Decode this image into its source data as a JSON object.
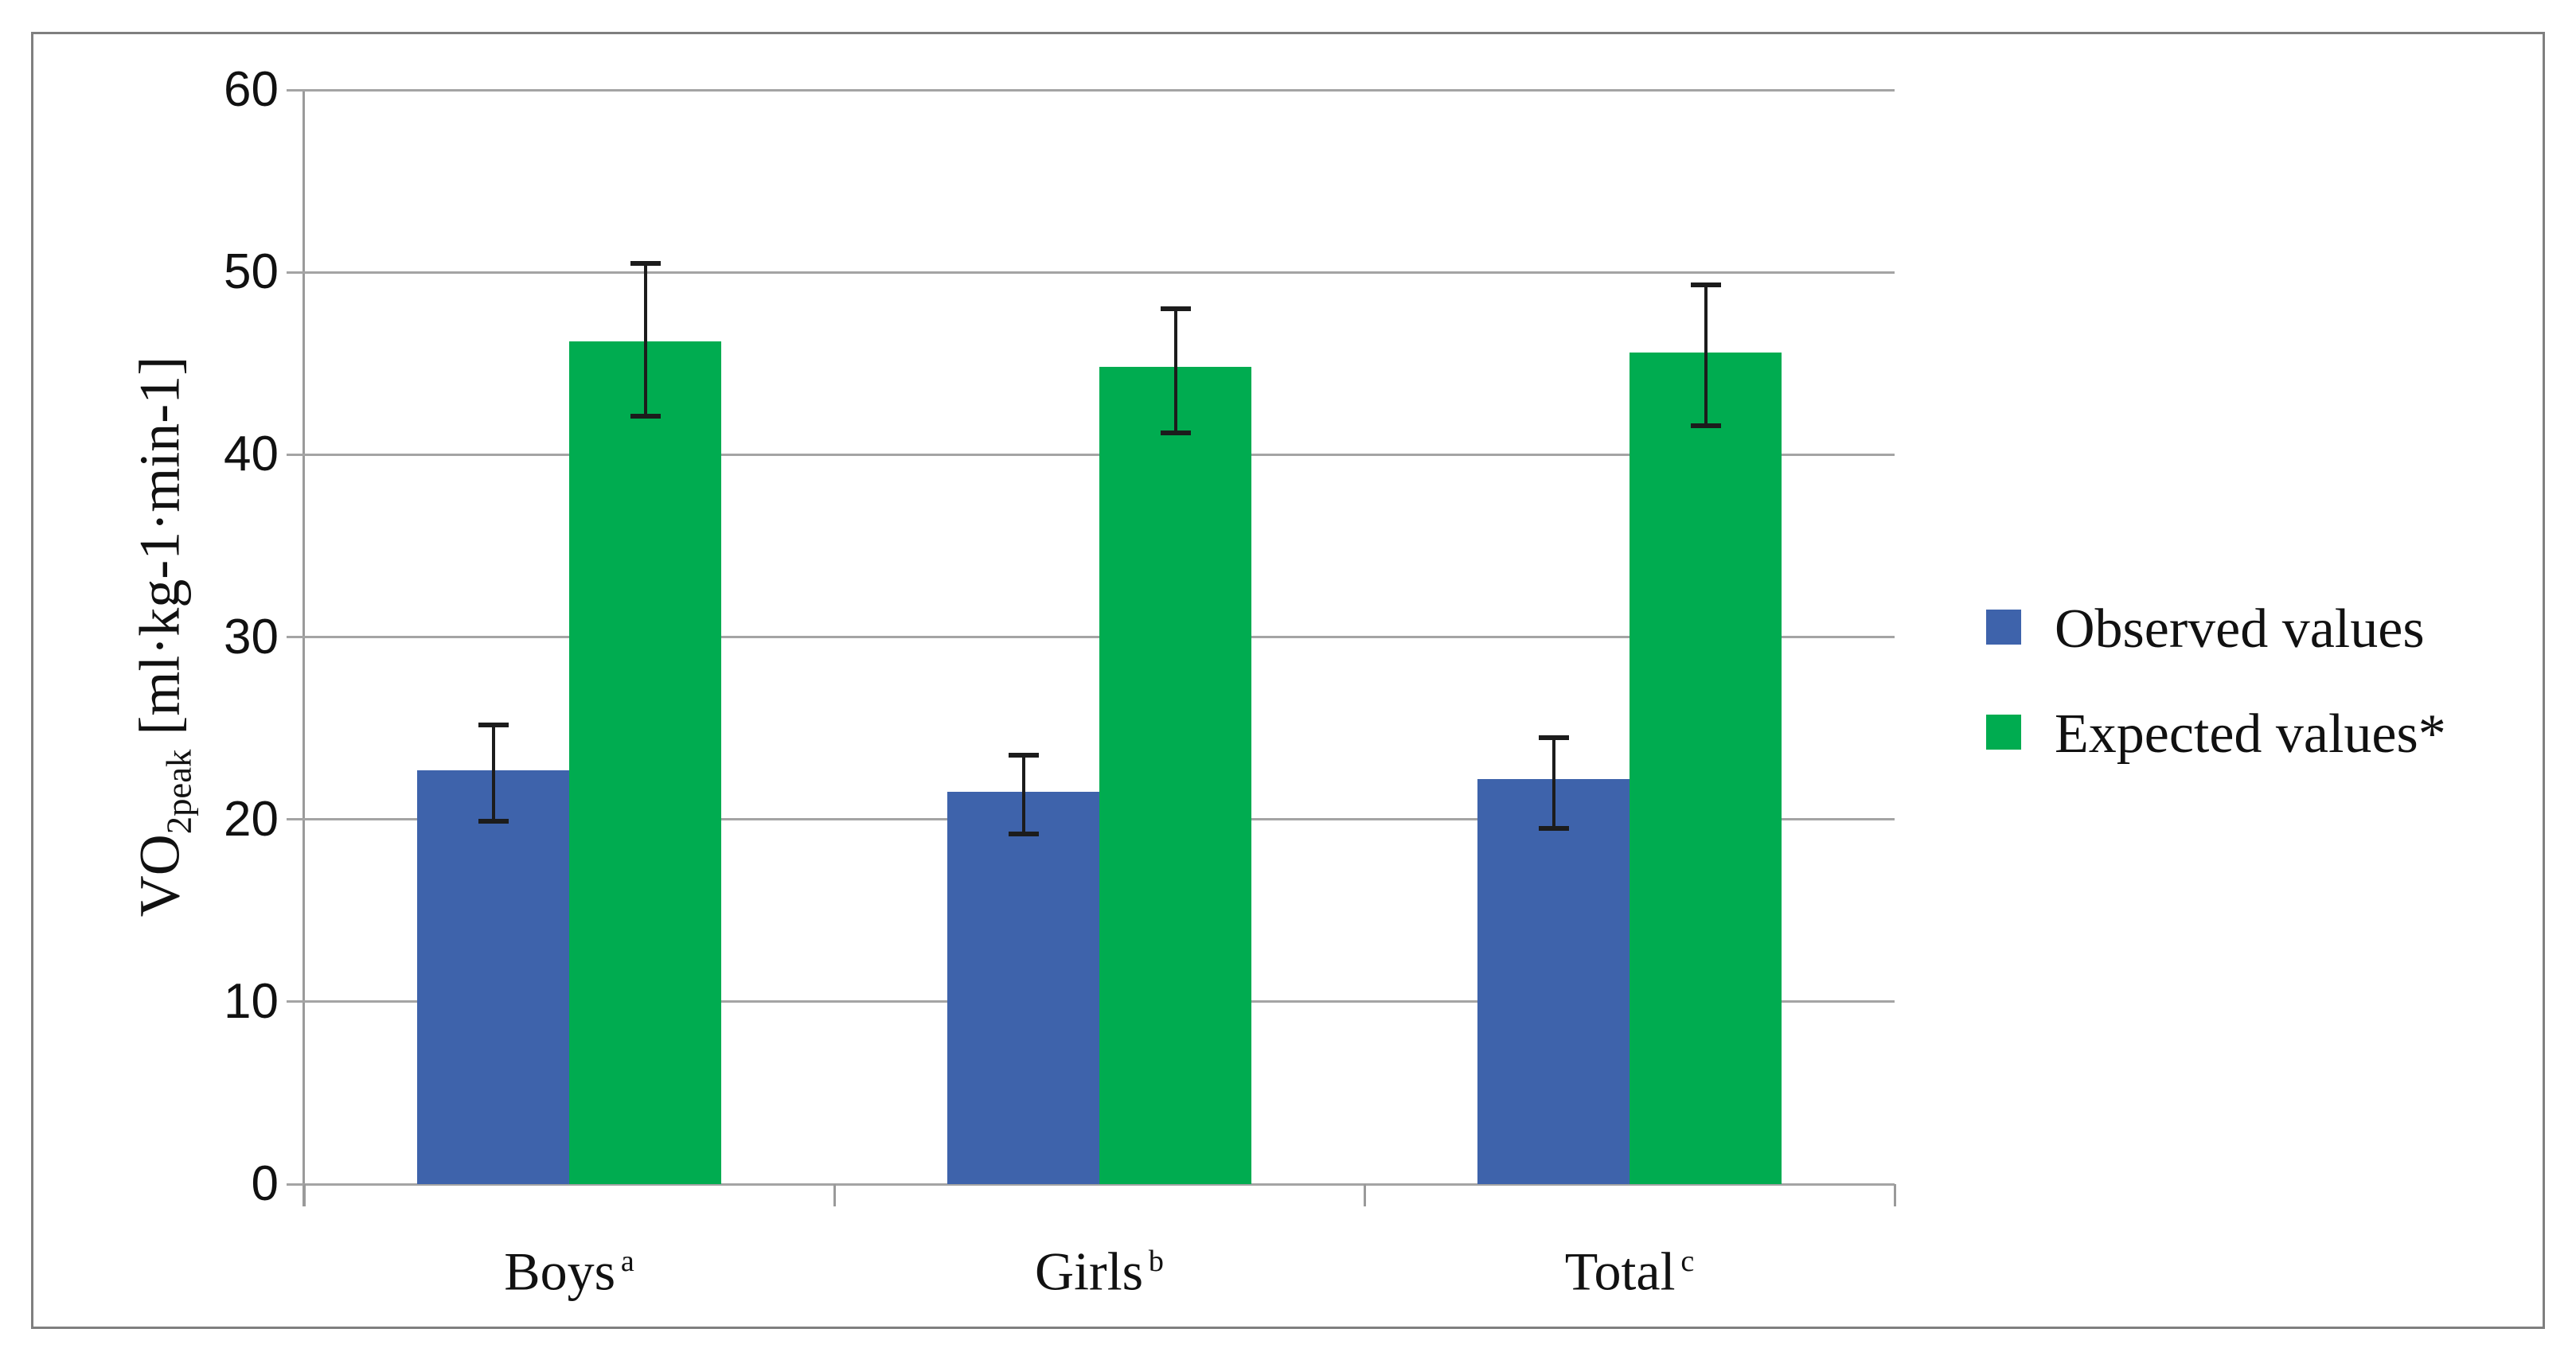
{
  "figure": {
    "background": "#ffffff",
    "border_color": "#7f7f7f",
    "gridline_color": "#a4a4a4",
    "axis_color": "#9a9a9a",
    "error_bar_color": "#1c1c1c"
  },
  "chart_data": {
    "type": "bar",
    "title": "",
    "categories": [
      "Boys",
      "Girls",
      "Total"
    ],
    "category_superscripts": [
      "a",
      "b",
      "c"
    ],
    "series": [
      {
        "name": "Observed values",
        "color": "#3e63ab",
        "values": [
          22.7,
          21.5,
          22.2
        ],
        "error_low": [
          19.9,
          19.2,
          19.5
        ],
        "error_high": [
          25.2,
          23.5,
          24.5
        ]
      },
      {
        "name": "Expected values*",
        "color": "#00ac50",
        "values": [
          46.2,
          44.8,
          45.6
        ],
        "error_low": [
          42.1,
          41.2,
          41.6
        ],
        "error_high": [
          50.5,
          48.0,
          49.3
        ]
      }
    ],
    "ylabel_main": "VO",
    "ylabel_sub": "2peak",
    "ylabel_units": " [ml·kg-1·min-1]",
    "xlabel": "",
    "ylim": [
      0,
      60
    ],
    "ytick_step": 10,
    "ytick_labels": [
      "0",
      "10",
      "20",
      "30",
      "40",
      "50",
      "60"
    ],
    "grid": true,
    "legend_position": "right-outside"
  }
}
